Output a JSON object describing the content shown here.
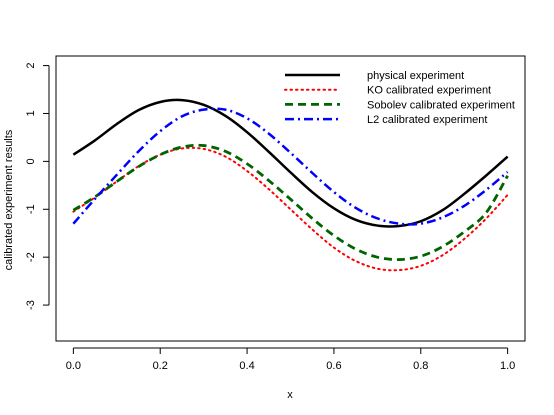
{
  "chart_data": {
    "type": "line",
    "title": "",
    "xlabel": "x",
    "ylabel": "calibrated experiment results",
    "xlim": [
      0.0,
      1.0
    ],
    "ylim": [
      -3.75,
      2.2
    ],
    "grid": false,
    "legend_position": "top-right",
    "x_ticks": [
      "0.0",
      "0.2",
      "0.4",
      "0.6",
      "0.8",
      "1.0"
    ],
    "x_tick_values": [
      0.0,
      0.2,
      0.4,
      0.6,
      0.8,
      1.0
    ],
    "y_ticks": [
      "-3",
      "-2",
      "-1",
      "0",
      "1",
      "2"
    ],
    "y_tick_values": [
      -3,
      -2,
      -1,
      0,
      1,
      2
    ],
    "series": [
      {
        "name": "physical experiment",
        "color": "#000000",
        "dash": "solid",
        "x": [
          0.0,
          0.05,
          0.1,
          0.15,
          0.2,
          0.25,
          0.3,
          0.35,
          0.4,
          0.45,
          0.5,
          0.55,
          0.6,
          0.65,
          0.7,
          0.75,
          0.8,
          0.85,
          0.9,
          0.95,
          1.0
        ],
        "y": [
          0.14,
          0.44,
          0.78,
          1.07,
          1.24,
          1.28,
          1.18,
          0.95,
          0.61,
          0.2,
          -0.23,
          -0.64,
          -0.98,
          -1.22,
          -1.34,
          -1.35,
          -1.25,
          -1.02,
          -0.68,
          -0.3,
          0.1
        ]
      },
      {
        "name": "KO calibrated experiment",
        "color": "#ff0000",
        "dash": "dotted",
        "x": [
          0.0,
          0.05,
          0.1,
          0.15,
          0.2,
          0.25,
          0.3,
          0.35,
          0.4,
          0.45,
          0.5,
          0.55,
          0.6,
          0.65,
          0.7,
          0.75,
          0.8,
          0.85,
          0.9,
          0.95,
          1.0
        ],
        "y": [
          -1.05,
          -0.75,
          -0.42,
          -0.1,
          0.14,
          0.27,
          0.26,
          0.1,
          -0.2,
          -0.58,
          -1.0,
          -1.42,
          -1.8,
          -2.08,
          -2.24,
          -2.27,
          -2.18,
          -1.96,
          -1.62,
          -1.2,
          -0.7
        ]
      },
      {
        "name": "Sobolev calibrated experiment",
        "color": "#006400",
        "dash": "dashed",
        "x": [
          0.0,
          0.05,
          0.1,
          0.15,
          0.2,
          0.25,
          0.3,
          0.35,
          0.4,
          0.45,
          0.5,
          0.55,
          0.6,
          0.65,
          0.7,
          0.75,
          0.8,
          0.85,
          0.9,
          0.95,
          1.0
        ],
        "y": [
          -1.02,
          -0.74,
          -0.42,
          -0.11,
          0.14,
          0.3,
          0.33,
          0.21,
          -0.05,
          -0.4,
          -0.79,
          -1.19,
          -1.55,
          -1.83,
          -2.0,
          -2.05,
          -1.98,
          -1.78,
          -1.47,
          -1.08,
          -0.3
        ]
      },
      {
        "name": "L2 calibrated experiment",
        "color": "#0000ff",
        "dash": "dashdot",
        "x": [
          0.0,
          0.05,
          0.1,
          0.15,
          0.2,
          0.25,
          0.3,
          0.35,
          0.4,
          0.45,
          0.5,
          0.55,
          0.6,
          0.65,
          0.7,
          0.75,
          0.8,
          0.85,
          0.9,
          0.95,
          1.0
        ],
        "y": [
          -1.3,
          -0.78,
          -0.28,
          0.21,
          0.63,
          0.94,
          1.08,
          1.08,
          0.9,
          0.58,
          0.18,
          -0.24,
          -0.64,
          -0.97,
          -1.19,
          -1.3,
          -1.3,
          -1.17,
          -0.93,
          -0.6,
          -0.22
        ]
      }
    ]
  }
}
